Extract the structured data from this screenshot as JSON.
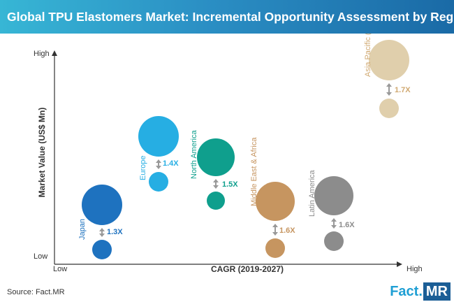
{
  "header": {
    "title": "Global TPU Elastomers Market: Incremental Opportunity Assessment by Region"
  },
  "footer": {
    "source": "Source: Fact.MR",
    "logo_left": "Fact",
    "logo_dot": ".",
    "logo_right": "MR"
  },
  "colors": {
    "header": "#2b8fc4",
    "axis": "#333333",
    "arrow": "#999999"
  },
  "chart_data": {
    "type": "bubble",
    "title": "Global TPU Elastomers Market: Incremental Opportunity Assessment by Region",
    "xlabel": "CAGR (2019-2027)",
    "ylabel": "Market Value (US$ Mn)",
    "x_low": "Low",
    "x_high": "High",
    "y_low": "Low",
    "y_high": "High",
    "grid": false,
    "series": [
      {
        "name": "Japan",
        "multiplier": "1.3X",
        "color": "#1e72bf",
        "label_color": "#1e72bf",
        "growth": 1.3
      },
      {
        "name": "Europe",
        "multiplier": "1.4X",
        "color": "#26aee3",
        "label_color": "#26aee3",
        "growth": 1.4
      },
      {
        "name": "North America",
        "multiplier": "1.5X",
        "color": "#0f9f8d",
        "label_color": "#0f9f8d",
        "growth": 1.5
      },
      {
        "name": "Middle East & Africa",
        "multiplier": "1.6X",
        "color": "#c69560",
        "label_color": "#c69560",
        "growth": 1.6
      },
      {
        "name": "Latin America",
        "multiplier": "1.6X",
        "color": "#8c8c8c",
        "label_color": "#8c8c8c",
        "growth": 1.6
      },
      {
        "name": "Asia Pacific (Ex. Japan)",
        "multiplier": "1.7X",
        "color": "#e0cfac",
        "label_color": "#d0a870",
        "growth": 1.7
      }
    ]
  }
}
